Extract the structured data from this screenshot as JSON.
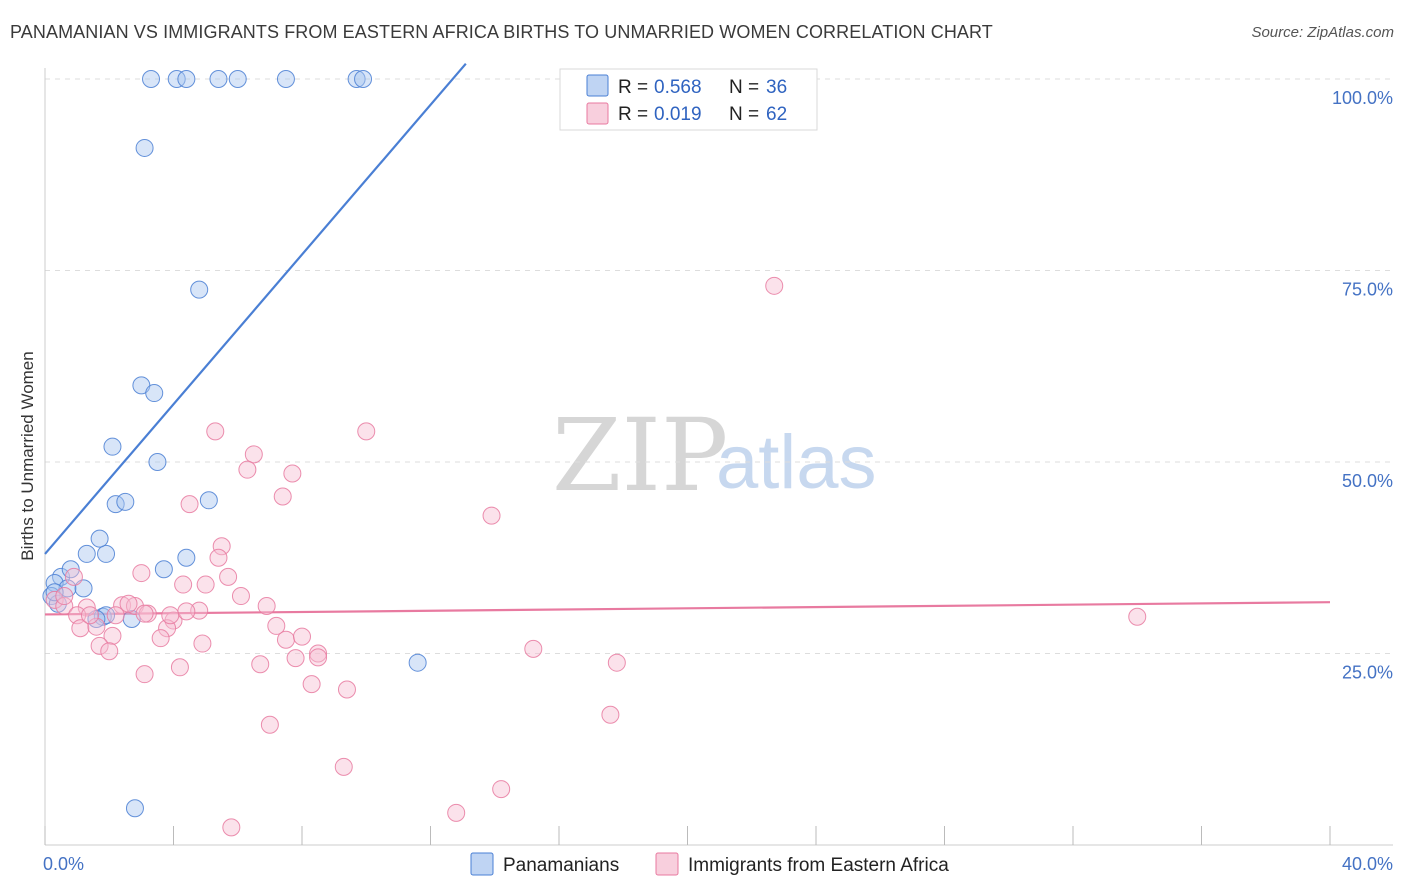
{
  "title": "PANAMANIAN VS IMMIGRANTS FROM EASTERN AFRICA BIRTHS TO UNMARRIED WOMEN CORRELATION CHART",
  "source": "Source: ZipAtlas.com",
  "watermark": {
    "zip": "ZIP",
    "atlas": "atlas"
  },
  "colors": {
    "blue": "#4a7fd4",
    "blue_fill": "#a9c6ef",
    "pink": "#e87aa0",
    "pink_fill": "#f6bfd2",
    "axis_text": "#4472c4"
  },
  "chart_data": {
    "type": "scatter",
    "title": "PANAMANIAN VS IMMIGRANTS FROM EASTERN AFRICA BIRTHS TO UNMARRIED WOMEN CORRELATION CHART",
    "xlabel": "",
    "ylabel": "Births to Unmarried Women",
    "xlim": [
      0,
      40
    ],
    "ylim": [
      0,
      100
    ],
    "x_ticks": [
      {
        "value": 0,
        "label": "0.0%"
      },
      {
        "value": 40,
        "label": "40.0%"
      }
    ],
    "y_ticks": [
      {
        "value": 25,
        "label": "25.0%"
      },
      {
        "value": 50,
        "label": "50.0%"
      },
      {
        "value": 75,
        "label": "75.0%"
      },
      {
        "value": 100,
        "label": "100.0%"
      }
    ],
    "legend": {
      "rows": [
        {
          "r_label": "R = ",
          "r_value": "0.568",
          "n_label": "N = ",
          "n_value": "36"
        },
        {
          "r_label": "R = ",
          "r_value": "0.019",
          "n_label": "N = ",
          "n_value": "62"
        }
      ]
    },
    "series": [
      {
        "name": "Panamanians",
        "color": "#4a7fd4",
        "trend": {
          "x1": 0.0,
          "y1": 38.0,
          "x2": 13.1,
          "y2": 102.0
        },
        "points": [
          [
            3.3,
            100
          ],
          [
            4.1,
            100
          ],
          [
            4.4,
            100
          ],
          [
            5.4,
            100
          ],
          [
            6.0,
            100
          ],
          [
            7.5,
            100
          ],
          [
            9.7,
            100
          ],
          [
            9.9,
            100
          ],
          [
            3.1,
            91
          ],
          [
            4.8,
            72.5
          ],
          [
            3.0,
            60
          ],
          [
            3.4,
            59
          ],
          [
            5.1,
            45
          ],
          [
            2.1,
            52
          ],
          [
            3.5,
            50
          ],
          [
            2.2,
            44.5
          ],
          [
            2.5,
            44.8
          ],
          [
            1.9,
            38
          ],
          [
            1.7,
            40
          ],
          [
            1.3,
            38
          ],
          [
            4.4,
            37.5
          ],
          [
            3.7,
            36
          ],
          [
            0.5,
            35
          ],
          [
            0.8,
            36
          ],
          [
            0.3,
            34.2
          ],
          [
            0.7,
            33.5
          ],
          [
            1.2,
            33.5
          ],
          [
            0.2,
            32.5
          ],
          [
            0.4,
            31.5
          ],
          [
            2.7,
            29.5
          ],
          [
            1.8,
            29.8
          ],
          [
            1.9,
            30
          ],
          [
            1.6,
            29.5
          ],
          [
            11.6,
            23.8
          ],
          [
            2.8,
            4.8
          ],
          [
            0.3,
            33
          ]
        ]
      },
      {
        "name": "Immigrants from Eastern Africa",
        "color": "#e87aa0",
        "trend": {
          "x1": 0.0,
          "y1": 30.1,
          "x2": 40.0,
          "y2": 31.7
        },
        "points": [
          [
            22.7,
            73
          ],
          [
            5.3,
            54
          ],
          [
            10.0,
            54
          ],
          [
            6.5,
            51
          ],
          [
            6.3,
            49
          ],
          [
            7.7,
            48.5
          ],
          [
            4.5,
            44.5
          ],
          [
            7.4,
            45.5
          ],
          [
            13.9,
            43
          ],
          [
            5.5,
            39
          ],
          [
            5.4,
            37.5
          ],
          [
            3.0,
            35.5
          ],
          [
            0.9,
            35
          ],
          [
            4.3,
            34
          ],
          [
            5.0,
            34
          ],
          [
            5.7,
            35
          ],
          [
            6.1,
            32.5
          ],
          [
            0.3,
            32
          ],
          [
            0.6,
            31.2
          ],
          [
            1.3,
            31.0
          ],
          [
            2.4,
            31.3
          ],
          [
            2.8,
            31.2
          ],
          [
            6.9,
            31.2
          ],
          [
            3.2,
            30.2
          ],
          [
            4.8,
            30.6
          ],
          [
            1.0,
            30
          ],
          [
            2.2,
            30
          ],
          [
            3.1,
            30.2
          ],
          [
            4.0,
            29.3
          ],
          [
            3.8,
            28.3
          ],
          [
            1.1,
            28.3
          ],
          [
            1.6,
            28.5
          ],
          [
            7.2,
            28.6
          ],
          [
            2.1,
            27.3
          ],
          [
            3.6,
            27
          ],
          [
            7.5,
            26.8
          ],
          [
            8.0,
            27.2
          ],
          [
            1.7,
            26
          ],
          [
            2.0,
            25.3
          ],
          [
            4.9,
            26.3
          ],
          [
            8.5,
            25
          ],
          [
            8.5,
            24.5
          ],
          [
            7.8,
            24.4
          ],
          [
            6.7,
            23.6
          ],
          [
            4.2,
            23.2
          ],
          [
            3.1,
            22.3
          ],
          [
            15.2,
            25.6
          ],
          [
            17.8,
            23.8
          ],
          [
            8.3,
            21
          ],
          [
            9.4,
            20.3
          ],
          [
            17.6,
            17
          ],
          [
            7.0,
            15.7
          ],
          [
            9.3,
            10.2
          ],
          [
            14.2,
            7.3
          ],
          [
            12.8,
            4.2
          ],
          [
            5.8,
            2.3
          ],
          [
            34.0,
            29.8
          ],
          [
            1.4,
            30.0
          ],
          [
            0.6,
            32.5
          ],
          [
            2.6,
            31.5
          ],
          [
            4.4,
            30.5
          ],
          [
            3.9,
            30.0
          ]
        ]
      }
    ]
  },
  "bottom_legend": {
    "items": [
      {
        "label": "Panamanians"
      },
      {
        "label": "Immigrants from Eastern Africa"
      }
    ]
  }
}
